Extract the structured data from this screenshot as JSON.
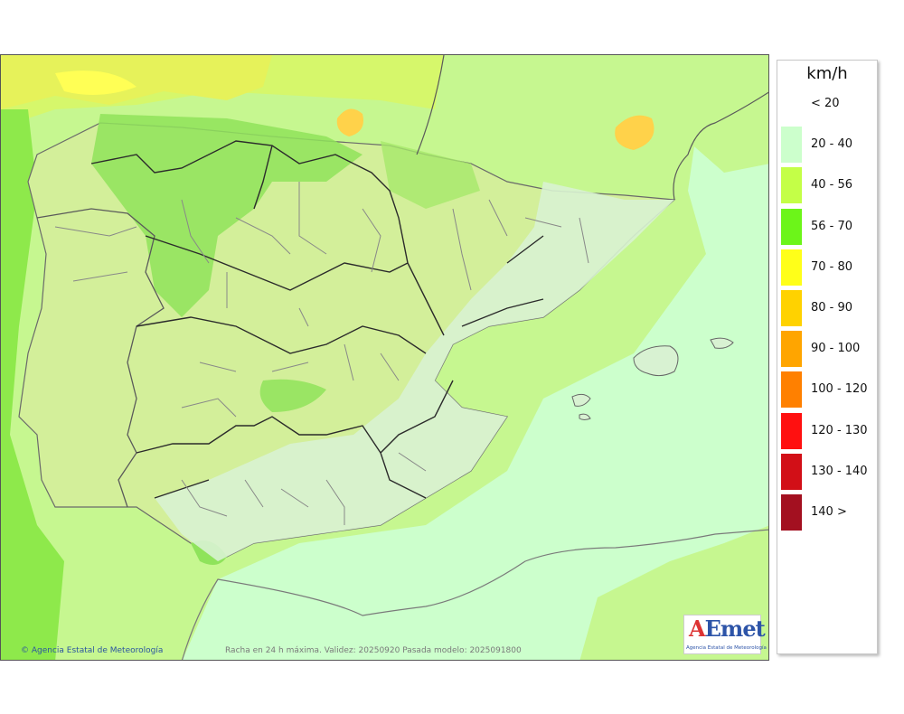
{
  "map": {
    "credit": "Agencia Estatal de Meteorología",
    "validity": "Racha en 24 h máxima. Validez: 20250920 Pasada modelo: 2025091800",
    "logo_text": "AEmet",
    "logo_subtext": "Agencia Estatal de Meteorología"
  },
  "legend": {
    "unit": "km/h",
    "items": [
      {
        "label": "< 20",
        "color": "#ffffff"
      },
      {
        "label": "20 - 40",
        "color": "#ccffcc"
      },
      {
        "label": "40 - 56",
        "color": "#c4ff47"
      },
      {
        "label": "56 - 70",
        "color": "#6cf519"
      },
      {
        "label": "70 - 80",
        "color": "#ffff19"
      },
      {
        "label": "80 - 90",
        "color": "#ffd200"
      },
      {
        "label": "90 - 100",
        "color": "#ffa500"
      },
      {
        "label": "100 - 120",
        "color": "#ff8000"
      },
      {
        "label": "120 - 130",
        "color": "#ff1010"
      },
      {
        "label": "130 - 140",
        "color": "#d20f17"
      },
      {
        "label": "140 >",
        "color": "#a31020"
      }
    ]
  }
}
